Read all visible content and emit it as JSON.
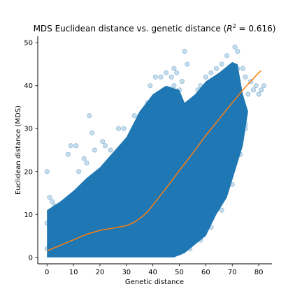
{
  "chart_data": {
    "type": "scatter",
    "title_main": "MDS Euclidean distance vs. genetic distance (",
    "title_r": "R",
    "title_sup": "2",
    "title_tail": " = 0.616)",
    "xlabel": "Genetic distance",
    "ylabel": "Euclidean distance (MDS)",
    "xlim": [
      -3.5,
      85
    ],
    "ylim": [
      -1.5,
      51.5
    ],
    "x_ticks": [
      0,
      10,
      20,
      30,
      40,
      50,
      60,
      70,
      80
    ],
    "y_ticks": [
      0,
      10,
      20,
      30,
      40,
      50
    ],
    "x_tick_labels": [
      "0",
      "10",
      "20",
      "30",
      "40",
      "50",
      "60",
      "70",
      "80"
    ],
    "y_tick_labels": [
      "0",
      "10",
      "20",
      "30",
      "40",
      "50"
    ],
    "grid": false,
    "colors": {
      "points": "#1f77b4",
      "trend": "#ff7f0e"
    },
    "point_alpha": 0.25,
    "dense_region": {
      "upper_edge": [
        [
          0,
          11
        ],
        [
          5,
          13
        ],
        [
          10,
          15.5
        ],
        [
          15,
          18.5
        ],
        [
          20,
          21
        ],
        [
          25,
          24.5
        ],
        [
          30,
          28
        ],
        [
          35,
          34
        ],
        [
          40,
          38
        ],
        [
          45,
          40
        ],
        [
          50,
          39
        ],
        [
          52,
          36
        ],
        [
          56,
          38
        ],
        [
          60,
          41
        ],
        [
          65,
          43
        ],
        [
          70,
          45.5
        ],
        [
          72,
          45
        ],
        [
          74,
          38
        ],
        [
          76,
          34
        ]
      ],
      "lower_edge": [
        [
          76,
          34
        ],
        [
          74,
          26
        ],
        [
          72,
          22
        ],
        [
          70,
          18
        ],
        [
          68,
          14
        ],
        [
          66,
          12
        ],
        [
          64,
          10
        ],
        [
          60,
          5
        ],
        [
          56,
          3
        ],
        [
          52,
          1
        ],
        [
          48,
          0
        ],
        [
          0,
          0
        ]
      ]
    },
    "series": [
      {
        "type": "scatter",
        "points": [
          [
            0,
            20
          ],
          [
            1,
            14
          ],
          [
            2,
            13
          ],
          [
            3,
            12
          ],
          [
            8,
            24
          ],
          [
            9,
            26
          ],
          [
            11,
            26
          ],
          [
            12,
            20
          ],
          [
            14,
            23
          ],
          [
            15,
            22
          ],
          [
            16,
            33
          ],
          [
            17,
            29
          ],
          [
            18,
            25
          ],
          [
            21,
            27
          ],
          [
            22,
            26
          ],
          [
            24,
            25
          ],
          [
            27,
            30
          ],
          [
            29,
            30
          ],
          [
            33,
            33
          ],
          [
            38,
            36
          ],
          [
            39,
            40
          ],
          [
            41,
            42
          ],
          [
            43,
            42
          ],
          [
            45,
            43
          ],
          [
            47,
            42
          ],
          [
            48,
            44
          ],
          [
            49,
            43
          ],
          [
            50,
            39
          ],
          [
            51,
            41
          ],
          [
            52,
            48
          ],
          [
            53,
            45
          ],
          [
            55,
            36
          ],
          [
            57,
            39
          ],
          [
            58,
            40
          ],
          [
            60,
            42
          ],
          [
            62,
            43
          ],
          [
            64,
            44
          ],
          [
            66,
            45
          ],
          [
            68,
            47
          ],
          [
            71,
            49
          ],
          [
            72,
            48
          ],
          [
            74,
            44
          ],
          [
            75,
            42
          ],
          [
            76,
            38
          ],
          [
            77,
            41
          ],
          [
            78,
            39
          ],
          [
            79,
            40
          ],
          [
            80,
            38
          ],
          [
            81,
            39
          ],
          [
            82,
            40
          ],
          [
            0,
            2
          ],
          [
            1,
            3
          ],
          [
            2,
            5
          ],
          [
            3,
            1
          ],
          [
            4,
            6
          ],
          [
            5,
            4
          ],
          [
            6,
            8
          ],
          [
            7,
            2
          ],
          [
            8,
            7
          ],
          [
            9,
            10
          ],
          [
            10,
            5
          ],
          [
            11,
            12
          ],
          [
            12,
            9
          ],
          [
            13,
            14
          ],
          [
            14,
            6
          ],
          [
            15,
            16
          ],
          [
            16,
            11
          ],
          [
            17,
            3
          ],
          [
            18,
            19
          ],
          [
            19,
            8
          ],
          [
            20,
            13
          ],
          [
            21,
            17
          ],
          [
            22,
            4
          ],
          [
            23,
            20
          ],
          [
            24,
            10
          ],
          [
            25,
            22
          ],
          [
            26,
            15
          ],
          [
            27,
            7
          ],
          [
            28,
            25
          ],
          [
            29,
            12
          ],
          [
            30,
            18
          ],
          [
            31,
            27
          ],
          [
            32,
            2
          ],
          [
            33,
            21
          ],
          [
            34,
            29
          ],
          [
            35,
            9
          ],
          [
            36,
            24
          ],
          [
            37,
            31
          ],
          [
            38,
            14
          ],
          [
            39,
            33
          ],
          [
            40,
            5
          ],
          [
            41,
            28
          ],
          [
            42,
            36
          ],
          [
            43,
            19
          ],
          [
            44,
            38
          ],
          [
            45,
            11
          ],
          [
            46,
            30
          ],
          [
            47,
            37
          ],
          [
            48,
            3
          ],
          [
            49,
            25
          ],
          [
            50,
            34
          ],
          [
            51,
            8
          ],
          [
            52,
            20
          ],
          [
            53,
            35
          ],
          [
            54,
            15
          ],
          [
            55,
            28
          ],
          [
            56,
            37
          ],
          [
            57,
            10
          ],
          [
            58,
            32
          ],
          [
            59,
            22
          ],
          [
            60,
            39
          ],
          [
            61,
            17
          ],
          [
            62,
            34
          ],
          [
            63,
            26
          ],
          [
            64,
            41
          ],
          [
            65,
            21
          ],
          [
            66,
            36
          ],
          [
            67,
            30
          ],
          [
            68,
            43
          ],
          [
            69,
            25
          ],
          [
            70,
            40
          ],
          [
            71,
            33
          ],
          [
            72,
            44
          ],
          [
            73,
            29
          ],
          [
            74,
            36
          ],
          [
            75,
            31
          ],
          [
            0,
            8
          ],
          [
            2,
            10
          ],
          [
            4,
            11
          ],
          [
            6,
            12
          ],
          [
            10,
            14
          ],
          [
            20,
            20
          ],
          [
            30,
            27
          ],
          [
            35,
            33
          ],
          [
            44,
            39
          ],
          [
            48,
            40
          ],
          [
            50,
            1
          ],
          [
            54,
            2
          ],
          [
            58,
            4
          ],
          [
            62,
            7
          ],
          [
            66,
            11
          ],
          [
            70,
            17
          ],
          [
            73,
            24
          ],
          [
            75,
            30
          ]
        ]
      },
      {
        "type": "line",
        "name": "trend",
        "x": [
          0,
          5,
          10,
          15,
          20,
          25,
          30,
          33,
          36,
          38,
          40,
          45,
          50,
          55,
          60,
          65,
          70,
          75,
          80,
          81
        ],
        "y": [
          1.5,
          2.8,
          4.1,
          5.4,
          6.3,
          6.8,
          7.4,
          8.2,
          9.5,
          10.6,
          12.2,
          16.1,
          20.2,
          24.2,
          28.4,
          32.2,
          36.0,
          39.7,
          43.0,
          43.5
        ]
      }
    ]
  }
}
